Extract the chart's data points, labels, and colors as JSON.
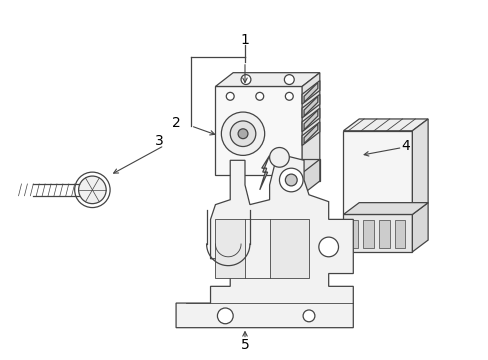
{
  "background_color": "#ffffff",
  "line_color": "#444444",
  "label_color": "#000000",
  "figsize": [
    4.89,
    3.6
  ],
  "dpi": 100,
  "label_fontsize": 10
}
